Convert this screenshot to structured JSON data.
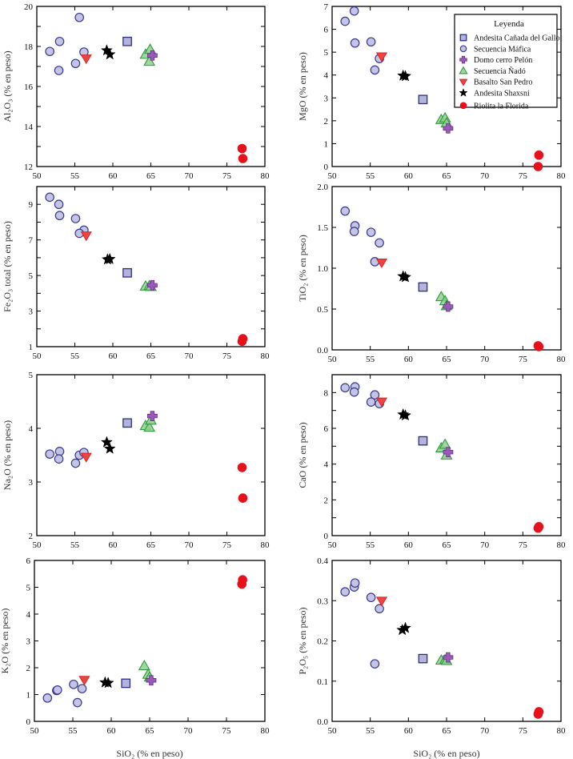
{
  "figure": {
    "shared_xlabel": "SiO₂ (% en peso)",
    "legend": {
      "title": "Leyenda",
      "placement": "top-right of MgO panel"
    }
  },
  "series_styles": [
    {
      "name": "Andesita Cañada del Gallo",
      "marker": "square",
      "fill": "#b3b3db",
      "stroke": "#2e2e8a"
    },
    {
      "name": "Secuencia Máfica",
      "marker": "circle",
      "fill": "#c4c4e6",
      "stroke": "#3a3a8c"
    },
    {
      "name": "Domo cerro Pelón",
      "marker": "plus",
      "fill": "#9a5bb8",
      "stroke": "#6a2c8a"
    },
    {
      "name": "Secuencia Ñadó",
      "marker": "triangle-up",
      "fill": "#8fd08f",
      "stroke": "#2e9a3e"
    },
    {
      "name": "Basalto San Pedro",
      "marker": "triangle-down",
      "fill": "#ee4444",
      "stroke": "#dd2222"
    },
    {
      "name": "Andesita Shaxsni",
      "marker": "star",
      "fill": "#000000",
      "stroke": "#000000"
    },
    {
      "name": "Riolita la Florida",
      "marker": "circle",
      "fill": "#e8101a",
      "stroke": "#e8101a"
    }
  ],
  "chart_data": [
    {
      "type": "scatter",
      "id": "al2o3",
      "title": "",
      "xlabel": "",
      "ylabel": "Al₂O₃ (% en peso)",
      "xlim": [
        50,
        80
      ],
      "ylim": [
        12,
        20
      ],
      "xticks": [
        50,
        55,
        60,
        65,
        70,
        75,
        80
      ],
      "yticks": [
        12,
        14,
        16,
        18,
        20
      ],
      "yminor": [
        13,
        15,
        17,
        19
      ],
      "grid": false,
      "series": [
        {
          "name": "Andesita Cañada del Gallo",
          "points": [
            [
              61.9,
              18.25
            ]
          ]
        },
        {
          "name": "Secuencia Máfica",
          "points": [
            [
              51.7,
              17.75
            ],
            [
              53.0,
              18.25
            ],
            [
              52.9,
              16.8
            ],
            [
              55.6,
              19.45
            ],
            [
              55.1,
              17.15
            ],
            [
              56.2,
              17.72
            ]
          ]
        },
        {
          "name": "Domo cerro Pelón",
          "points": [
            [
              65.2,
              17.55
            ]
          ]
        },
        {
          "name": "Secuencia Ñadó",
          "points": [
            [
              64.3,
              17.6
            ],
            [
              64.9,
              17.85
            ],
            [
              64.8,
              17.25
            ]
          ]
        },
        {
          "name": "Basalto San Pedro",
          "points": [
            [
              56.5,
              17.4
            ]
          ]
        },
        {
          "name": "Andesita Shaxsni",
          "points": [
            [
              59.2,
              17.8
            ],
            [
              59.6,
              17.6
            ]
          ]
        },
        {
          "name": "Riolita la Florida",
          "points": [
            [
              77.0,
              12.9
            ],
            [
              77.1,
              12.4
            ]
          ]
        }
      ]
    },
    {
      "type": "scatter",
      "id": "mgo",
      "title": "",
      "xlabel": "",
      "ylabel": "MgO (% en peso)",
      "xlim": [
        50,
        80
      ],
      "ylim": [
        0,
        7
      ],
      "xticks": [
        50,
        55,
        60,
        65,
        70,
        75,
        80
      ],
      "yticks": [
        0,
        1,
        2,
        3,
        4,
        5,
        6,
        7
      ],
      "yminor": [],
      "grid": false,
      "series": [
        {
          "name": "Andesita Cañada del Gallo",
          "points": [
            [
              61.9,
              2.93
            ]
          ]
        },
        {
          "name": "Secuencia Máfica",
          "points": [
            [
              51.7,
              6.35
            ],
            [
              52.9,
              6.8
            ],
            [
              53.0,
              5.4
            ],
            [
              55.1,
              5.45
            ],
            [
              56.2,
              4.72
            ],
            [
              55.6,
              4.22
            ]
          ]
        },
        {
          "name": "Domo cerro Pelón",
          "points": [
            [
              65.2,
              1.67
            ]
          ]
        },
        {
          "name": "Secuencia Ñadó",
          "points": [
            [
              64.3,
              2.05
            ],
            [
              64.8,
              2.12
            ],
            [
              65.0,
              1.9
            ]
          ]
        },
        {
          "name": "Basalto San Pedro",
          "points": [
            [
              56.5,
              4.82
            ]
          ]
        },
        {
          "name": "Andesita Shaxsni",
          "points": [
            [
              59.3,
              3.97
            ],
            [
              59.6,
              3.95
            ]
          ]
        },
        {
          "name": "Riolita la Florida",
          "points": [
            [
              77.0,
              0.0
            ],
            [
              77.1,
              0.5
            ]
          ]
        }
      ]
    },
    {
      "type": "scatter",
      "id": "fe2o3",
      "title": "",
      "xlabel": "",
      "ylabel": "Fe₂O₃ total (% en peso)",
      "xlim": [
        50,
        80
      ],
      "ylim": [
        1,
        10
      ],
      "xticks": [
        50,
        55,
        60,
        65,
        70,
        75,
        80
      ],
      "yticks": [
        1,
        3,
        5,
        7,
        9
      ],
      "yminor": [
        2,
        4,
        6,
        8
      ],
      "grid": false,
      "series": [
        {
          "name": "Andesita Cañada del Gallo",
          "points": [
            [
              61.9,
              5.15
            ]
          ]
        },
        {
          "name": "Secuencia Máfica",
          "points": [
            [
              51.7,
              9.4
            ],
            [
              52.9,
              9.0
            ],
            [
              53.0,
              8.37
            ],
            [
              55.1,
              8.2
            ],
            [
              56.2,
              7.55
            ],
            [
              55.6,
              7.37
            ]
          ]
        },
        {
          "name": "Domo cerro Pelón",
          "points": [
            [
              65.2,
              4.45
            ]
          ]
        },
        {
          "name": "Secuencia Ñadó",
          "points": [
            [
              64.3,
              4.4
            ],
            [
              64.8,
              4.42
            ],
            [
              65.0,
              4.38
            ]
          ]
        },
        {
          "name": "Basalto San Pedro",
          "points": [
            [
              56.5,
              7.25
            ]
          ]
        },
        {
          "name": "Andesita Shaxsni",
          "points": [
            [
              59.3,
              5.9
            ],
            [
              59.6,
              5.92
            ]
          ]
        },
        {
          "name": "Riolita la Florida",
          "points": [
            [
              77.0,
              1.3
            ],
            [
              77.1,
              1.45
            ]
          ]
        }
      ]
    },
    {
      "type": "scatter",
      "id": "tio2",
      "title": "",
      "xlabel": "",
      "ylabel": "TiO₂ (% en peso)",
      "xlim": [
        50,
        80
      ],
      "ylim": [
        0,
        2
      ],
      "xticks": [
        50,
        55,
        60,
        65,
        70,
        75,
        80
      ],
      "yticks": [
        0.0,
        0.5,
        1.0,
        1.5,
        2.0
      ],
      "ytick_labels": [
        "0.0",
        "0.5",
        "1.0",
        "1.5",
        "2.0"
      ],
      "yminor": [],
      "grid": false,
      "series": [
        {
          "name": "Andesita Cañada del Gallo",
          "points": [
            [
              61.9,
              0.77
            ]
          ]
        },
        {
          "name": "Secuencia Máfica",
          "points": [
            [
              51.7,
              1.7
            ],
            [
              53.0,
              1.52
            ],
            [
              52.9,
              1.45
            ],
            [
              55.1,
              1.44
            ],
            [
              56.2,
              1.31
            ],
            [
              55.6,
              1.08
            ]
          ]
        },
        {
          "name": "Domo cerro Pelón",
          "points": [
            [
              65.2,
              0.53
            ]
          ]
        },
        {
          "name": "Secuencia Ñadó",
          "points": [
            [
              64.3,
              0.65
            ],
            [
              64.8,
              0.6
            ],
            [
              65.0,
              0.54
            ]
          ]
        },
        {
          "name": "Basalto San Pedro",
          "points": [
            [
              56.5,
              1.07
            ]
          ]
        },
        {
          "name": "Andesita Shaxsni",
          "points": [
            [
              59.3,
              0.9
            ],
            [
              59.6,
              0.89
            ]
          ]
        },
        {
          "name": "Riolita la Florida",
          "points": [
            [
              77.0,
              0.05
            ],
            [
              77.1,
              0.04
            ]
          ]
        }
      ]
    },
    {
      "type": "scatter",
      "id": "na2o",
      "title": "",
      "xlabel": "",
      "ylabel": "Na₂O (% en peso)",
      "xlim": [
        50,
        80
      ],
      "ylim": [
        2,
        5
      ],
      "xticks": [
        50,
        55,
        60,
        65,
        70,
        75,
        80
      ],
      "yticks": [
        2,
        3,
        4,
        5
      ],
      "yminor": [],
      "grid": false,
      "series": [
        {
          "name": "Andesita Cañada del Gallo",
          "points": [
            [
              61.9,
              4.1
            ]
          ]
        },
        {
          "name": "Secuencia Máfica",
          "points": [
            [
              51.7,
              3.52
            ],
            [
              53.0,
              3.57
            ],
            [
              52.9,
              3.43
            ],
            [
              55.1,
              3.35
            ],
            [
              55.6,
              3.5
            ],
            [
              56.2,
              3.55
            ]
          ]
        },
        {
          "name": "Domo cerro Pelón",
          "points": [
            [
              65.2,
              4.23
            ]
          ]
        },
        {
          "name": "Secuencia Ñadó",
          "points": [
            [
              64.3,
              4.05
            ],
            [
              64.8,
              4.02
            ],
            [
              65.0,
              4.15
            ]
          ]
        },
        {
          "name": "Basalto San Pedro",
          "points": [
            [
              56.5,
              3.47
            ]
          ]
        },
        {
          "name": "Andesita Shaxsni",
          "points": [
            [
              59.2,
              3.74
            ],
            [
              59.6,
              3.62
            ]
          ]
        },
        {
          "name": "Riolita la Florida",
          "points": [
            [
              77.0,
              3.27
            ],
            [
              77.1,
              2.7
            ]
          ]
        }
      ]
    },
    {
      "type": "scatter",
      "id": "cao",
      "title": "",
      "xlabel": "",
      "ylabel": "CaO (% en peso)",
      "xlim": [
        50,
        80
      ],
      "ylim": [
        0,
        9
      ],
      "xticks": [
        50,
        55,
        60,
        65,
        70,
        75,
        80
      ],
      "yticks": [
        0,
        2,
        4,
        6,
        8
      ],
      "yminor": [
        1,
        3,
        5,
        7
      ],
      "grid": false,
      "series": [
        {
          "name": "Andesita Cañada del Gallo",
          "points": [
            [
              61.9,
              5.3
            ]
          ]
        },
        {
          "name": "Secuencia Máfica",
          "points": [
            [
              51.7,
              8.27
            ],
            [
              53.0,
              8.32
            ],
            [
              52.9,
              8.03
            ],
            [
              55.6,
              7.87
            ],
            [
              55.1,
              7.47
            ],
            [
              56.2,
              7.38
            ]
          ]
        },
        {
          "name": "Domo cerro Pelón",
          "points": [
            [
              65.2,
              4.67
            ]
          ]
        },
        {
          "name": "Secuencia Ñadó",
          "points": [
            [
              64.3,
              4.9
            ],
            [
              64.8,
              5.1
            ],
            [
              65.0,
              4.5
            ]
          ]
        },
        {
          "name": "Basalto San Pedro",
          "points": [
            [
              56.5,
              7.5
            ]
          ]
        },
        {
          "name": "Andesita Shaxsni",
          "points": [
            [
              59.3,
              6.77
            ],
            [
              59.6,
              6.72
            ]
          ]
        },
        {
          "name": "Riolita la Florida",
          "points": [
            [
              77.0,
              0.42
            ],
            [
              77.1,
              0.5
            ]
          ]
        }
      ]
    },
    {
      "type": "scatter",
      "id": "k2o",
      "title": "",
      "xlabel": "SiO₂ (% en peso)",
      "ylabel": "K₂O (% en peso)",
      "xlim": [
        50,
        80
      ],
      "ylim": [
        0,
        6
      ],
      "xticks": [
        50,
        55,
        60,
        65,
        70,
        75,
        80
      ],
      "yticks": [
        0,
        1,
        2,
        3,
        4,
        5,
        6
      ],
      "yminor": [],
      "grid": false,
      "series": [
        {
          "name": "Andesita Cañada del Gallo",
          "points": [
            [
              61.9,
              1.42
            ]
          ]
        },
        {
          "name": "Secuencia Máfica",
          "points": [
            [
              51.7,
              0.87
            ],
            [
              52.9,
              1.15
            ],
            [
              53.0,
              1.17
            ],
            [
              55.1,
              1.38
            ],
            [
              56.2,
              1.22
            ],
            [
              55.6,
              0.7
            ]
          ]
        },
        {
          "name": "Domo cerro Pelón",
          "points": [
            [
              65.2,
              1.53
            ]
          ]
        },
        {
          "name": "Secuencia Ñadó",
          "points": [
            [
              64.3,
              2.07
            ],
            [
              64.8,
              1.75
            ],
            [
              65.0,
              1.65
            ]
          ]
        },
        {
          "name": "Basalto San Pedro",
          "points": [
            [
              56.5,
              1.55
            ]
          ]
        },
        {
          "name": "Andesita Shaxsni",
          "points": [
            [
              59.2,
              1.45
            ],
            [
              59.6,
              1.43
            ]
          ]
        },
        {
          "name": "Riolita la Florida",
          "points": [
            [
              77.0,
              5.12
            ],
            [
              77.1,
              5.28
            ]
          ]
        }
      ]
    },
    {
      "type": "scatter",
      "id": "p2o5",
      "title": "",
      "xlabel": "SiO₂ (% en peso)",
      "ylabel": "P₂O₅ (% en peso)",
      "xlim": [
        50,
        80
      ],
      "ylim": [
        0,
        0.4
      ],
      "xticks": [
        50,
        55,
        60,
        65,
        70,
        75,
        80
      ],
      "yticks": [
        0.0,
        0.1,
        0.2,
        0.3,
        0.4
      ],
      "ytick_labels": [
        "0.0",
        "0.1",
        "0.2",
        "0.3",
        "0.4"
      ],
      "yminor": [],
      "grid": false,
      "series": [
        {
          "name": "Andesita Cañada del Gallo",
          "points": [
            [
              61.9,
              0.156
            ]
          ]
        },
        {
          "name": "Secuencia Máfica",
          "points": [
            [
              51.7,
              0.322
            ],
            [
              52.9,
              0.334
            ],
            [
              53.0,
              0.344
            ],
            [
              55.1,
              0.308
            ],
            [
              56.2,
              0.28
            ],
            [
              55.6,
              0.143
            ]
          ]
        },
        {
          "name": "Domo cerro Pelón",
          "points": [
            [
              65.2,
              0.159
            ]
          ]
        },
        {
          "name": "Secuencia Ñadó",
          "points": [
            [
              64.3,
              0.152
            ],
            [
              64.8,
              0.153
            ],
            [
              65.0,
              0.151
            ]
          ]
        },
        {
          "name": "Basalto San Pedro",
          "points": [
            [
              56.5,
              0.3
            ]
          ]
        },
        {
          "name": "Andesita Shaxsni",
          "points": [
            [
              59.2,
              0.227
            ],
            [
              59.6,
              0.232
            ]
          ]
        },
        {
          "name": "Riolita la Florida",
          "points": [
            [
              77.0,
              0.018
            ],
            [
              77.1,
              0.024
            ]
          ]
        }
      ]
    }
  ]
}
